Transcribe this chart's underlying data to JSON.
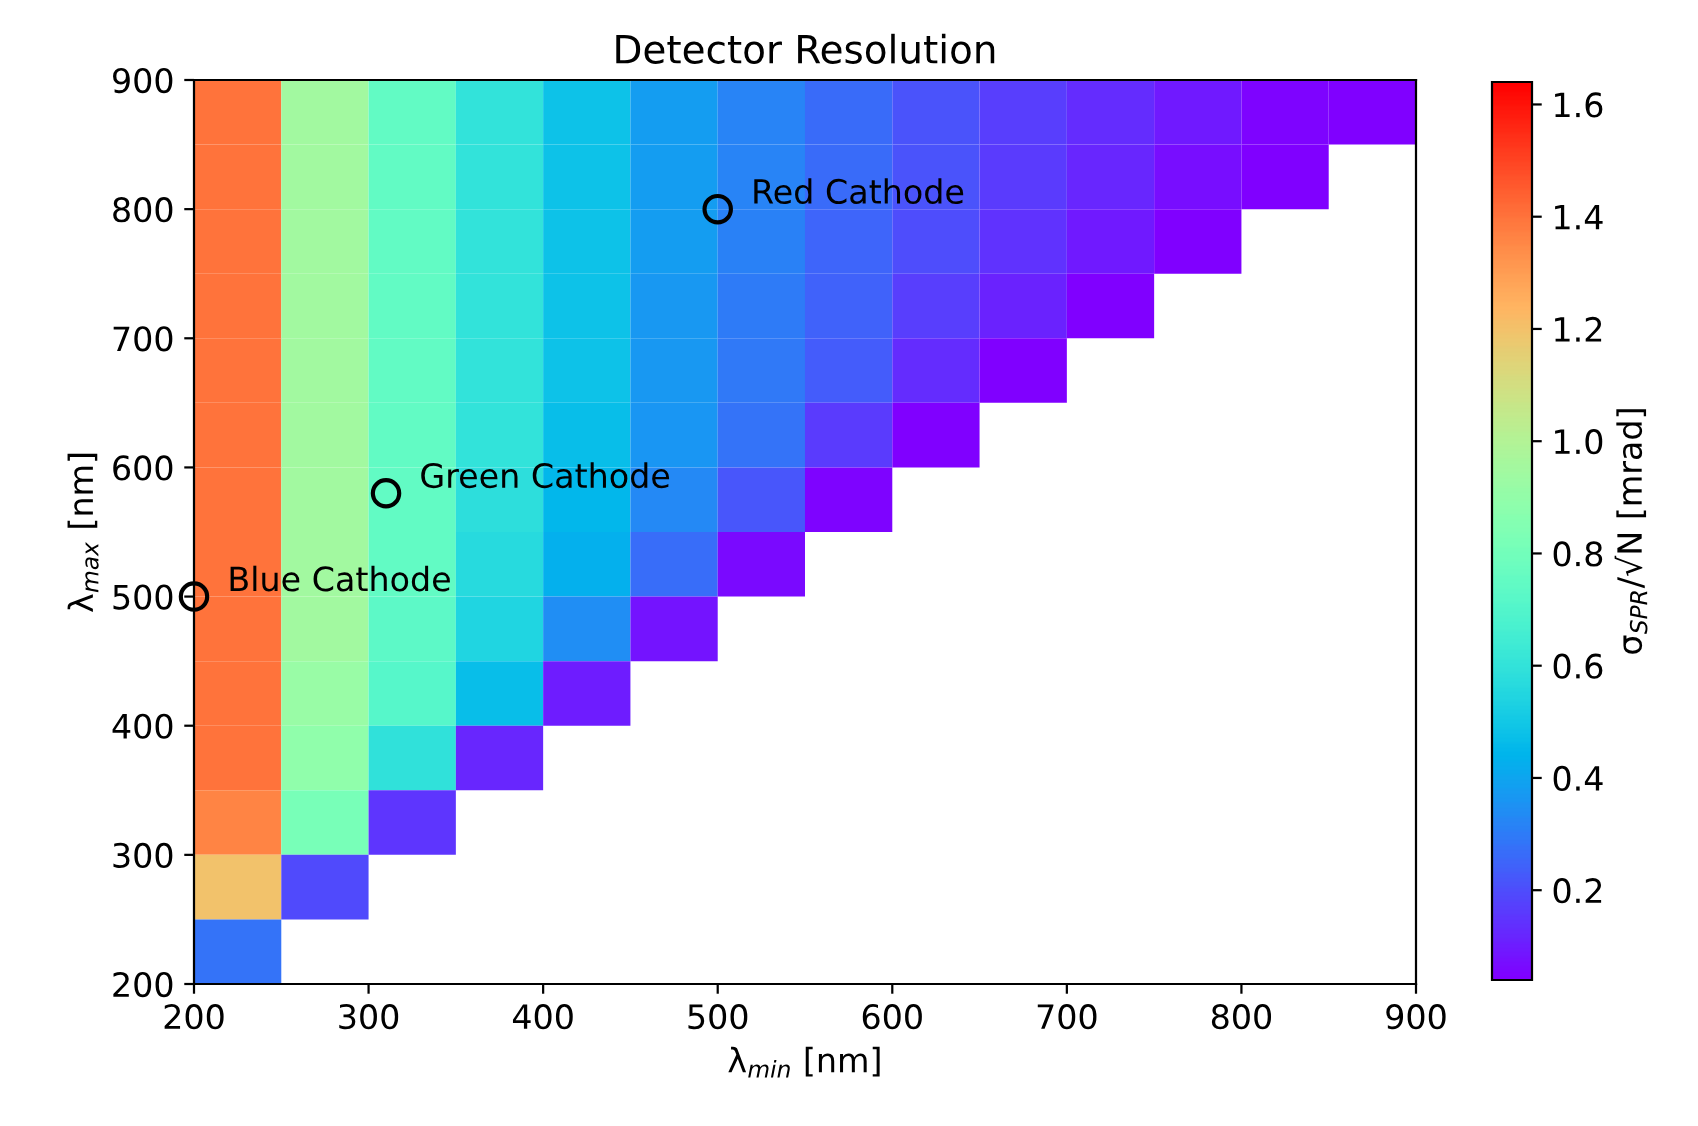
{
  "chart_data": {
    "type": "heatmap",
    "title": "Detector Resolution",
    "xlabel": "λ$_{min}$ [nm]",
    "ylabel": "λ$_{max}$ [nm]",
    "clabel": "σ$_{SPR}$/√N [mrad]",
    "x": [
      225,
      275,
      325,
      375,
      425,
      475,
      525,
      575,
      625,
      675,
      725,
      775,
      825,
      875
    ],
    "y": [
      875,
      825,
      775,
      725,
      675,
      625,
      575,
      525,
      475,
      425,
      375,
      325,
      275,
      225
    ],
    "cells": [
      [
        1.4,
        0.95,
        0.75,
        0.6,
        0.48,
        0.38,
        0.32,
        0.26,
        0.21,
        0.17,
        0.13,
        0.09,
        0.05,
        0.04
      ],
      [
        1.4,
        0.95,
        0.75,
        0.6,
        0.48,
        0.38,
        0.32,
        0.26,
        0.21,
        0.16,
        0.12,
        0.07,
        0.04,
        null
      ],
      [
        1.4,
        0.95,
        0.75,
        0.6,
        0.48,
        0.38,
        0.31,
        0.25,
        0.2,
        0.14,
        0.09,
        0.04,
        null,
        null
      ],
      [
        1.4,
        0.95,
        0.75,
        0.6,
        0.48,
        0.37,
        0.3,
        0.24,
        0.17,
        0.11,
        0.04,
        null,
        null,
        null
      ],
      [
        1.4,
        0.95,
        0.75,
        0.6,
        0.48,
        0.37,
        0.29,
        0.23,
        0.13,
        0.04,
        null,
        null,
        null,
        null
      ],
      [
        1.4,
        0.95,
        0.75,
        0.6,
        0.47,
        0.36,
        0.28,
        0.16,
        0.04,
        null,
        null,
        null,
        null,
        null
      ],
      [
        1.4,
        0.95,
        0.75,
        0.58,
        0.45,
        0.33,
        0.22,
        0.05,
        null,
        null,
        null,
        null,
        null,
        null
      ],
      [
        1.4,
        0.95,
        0.75,
        0.56,
        0.43,
        0.27,
        0.06,
        null,
        null,
        null,
        null,
        null,
        null,
        null
      ],
      [
        1.4,
        0.95,
        0.73,
        0.54,
        0.34,
        0.08,
        null,
        null,
        null,
        null,
        null,
        null,
        null,
        null
      ],
      [
        1.4,
        0.92,
        0.71,
        0.47,
        0.1,
        null,
        null,
        null,
        null,
        null,
        null,
        null,
        null,
        null
      ],
      [
        1.4,
        0.89,
        0.59,
        0.12,
        null,
        null,
        null,
        null,
        null,
        null,
        null,
        null,
        null,
        null
      ],
      [
        1.36,
        0.82,
        0.15,
        null,
        null,
        null,
        null,
        null,
        null,
        null,
        null,
        null,
        null,
        null
      ],
      [
        1.2,
        0.19,
        null,
        null,
        null,
        null,
        null,
        null,
        null,
        null,
        null,
        null,
        null,
        null
      ],
      [
        0.28,
        null,
        null,
        null,
        null,
        null,
        null,
        null,
        null,
        null,
        null,
        null,
        null,
        null
      ]
    ],
    "clim": [
      0.04,
      1.64
    ],
    "cticks": [
      0.2,
      0.4,
      0.6,
      0.8,
      {
        "value": 1,
        "label": "1.0"
      },
      1.2,
      1.4,
      1.6
    ],
    "xlim": [
      200,
      900
    ],
    "ylim": [
      200,
      900
    ],
    "xticks": [
      200,
      300,
      400,
      500,
      600,
      700,
      800,
      900
    ],
    "yticks": [
      200,
      300,
      400,
      500,
      600,
      700,
      800,
      900
    ],
    "series": [
      {
        "type": "scatter",
        "x": [
          200,
          310,
          500
        ],
        "values": [
          500,
          580,
          800
        ],
        "color": "#000000",
        "marker": "circle"
      }
    ],
    "annotations": [
      {
        "text": "Blue Cathode",
        "x": 200,
        "y": 500
      },
      {
        "text": "Green Cathode",
        "x": 310,
        "y": 580
      },
      {
        "text": "Red Cathode",
        "x": 500,
        "y": 800
      }
    ],
    "grid": false
  }
}
